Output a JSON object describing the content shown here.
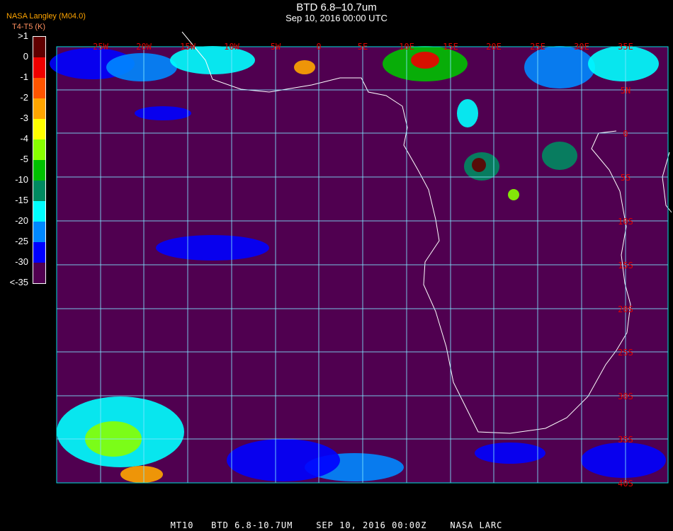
{
  "header": {
    "title": "BTD 6.8–10.7um",
    "subtitle": "Sep 10, 2016 00:00 UTC"
  },
  "credit": {
    "line1": "NASA Langley (M04.0)",
    "line2": "T4-T5 (K)",
    "overlap": "BTD"
  },
  "legend": {
    "labels": [
      ">1",
      "0",
      "-1",
      "-2",
      "-3",
      "-4",
      "-5",
      "-10",
      "-15",
      "-20",
      "-25",
      "-30",
      "<-35"
    ],
    "colors": [
      "#600000",
      "#f00000",
      "#ff5500",
      "#ffa500",
      "#ffff00",
      "#88ff00",
      "#00c000",
      "#008a60",
      "#00ffff",
      "#0088ff",
      "#0000ff",
      "#500050"
    ]
  },
  "map": {
    "background": "#500050",
    "lon_labels": [
      "25W",
      "20W",
      "15W",
      "10W",
      "5W",
      "0",
      "5E",
      "10E",
      "15E",
      "20E",
      "25E",
      "30E",
      "35E"
    ],
    "lat_labels": [
      "5N",
      "0",
      "5S",
      "10S",
      "15S",
      "20S",
      "25S",
      "30S",
      "35S",
      "40S"
    ],
    "grid_color": "#00e0e0",
    "label_color": "#e00000",
    "coast_color": "#ffffff"
  },
  "footer": "MT10   BTD 6.8-10.7UM    SEP 10, 2016 00:00Z    NASA LARC"
}
